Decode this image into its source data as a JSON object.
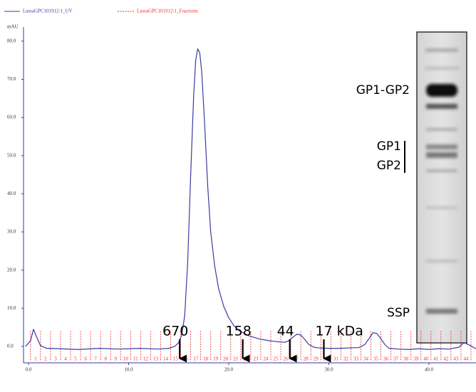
{
  "chart_data": {
    "type": "line",
    "y_label": "mAU",
    "xlim": [
      -0.5,
      44.7
    ],
    "ylim": [
      -4.3,
      83.7
    ],
    "xticks": [
      {
        "value": 0,
        "label": "0.0"
      },
      {
        "value": 10,
        "label": "10.0"
      },
      {
        "value": 20,
        "label": "20.0"
      },
      {
        "value": 30,
        "label": "30.0"
      },
      {
        "value": 40,
        "label": "40.0"
      }
    ],
    "yticks": [
      {
        "value": 0,
        "label": "0.0"
      },
      {
        "value": 10,
        "label": "10.0"
      },
      {
        "value": 20,
        "label": "20.0"
      },
      {
        "value": 30,
        "label": "30.0"
      },
      {
        "value": 40,
        "label": "40.0"
      },
      {
        "value": 50,
        "label": "50.0"
      },
      {
        "value": 60,
        "label": "60.0"
      },
      {
        "value": 70,
        "label": "70.0"
      },
      {
        "value": 80,
        "label": "80.0"
      }
    ],
    "series": [
      {
        "name": "LassaGPC101912:1_UV",
        "color": "#3b3ba0",
        "x": [
          -0.3,
          0.2,
          0.5,
          0.8,
          1.2,
          1.8,
          3,
          5,
          7,
          9,
          11,
          13,
          14,
          14.6,
          15,
          15.3,
          15.6,
          15.9,
          16.2,
          16.5,
          16.7,
          16.9,
          17.1,
          17.3,
          17.6,
          17.9,
          18.2,
          18.6,
          19,
          19.5,
          20,
          20.5,
          21,
          22,
          23,
          24,
          25,
          25.6,
          26,
          26.4,
          26.8,
          27.2,
          27.6,
          28,
          28.5,
          29,
          30,
          31,
          32,
          33,
          33.6,
          34,
          34.4,
          34.8,
          35.2,
          35.6,
          36,
          37,
          38,
          39,
          40,
          41,
          42,
          43,
          43.5,
          44,
          44.7
        ],
        "values": [
          0,
          1.5,
          4.5,
          2.5,
          0.2,
          -0.5,
          -0.6,
          -0.8,
          -0.5,
          -0.7,
          -0.5,
          -0.7,
          -0.5,
          0,
          1,
          3,
          8,
          22,
          45,
          66,
          75,
          78,
          77,
          72,
          58,
          42,
          30,
          21,
          15,
          10.5,
          7.5,
          5.5,
          4.2,
          2.8,
          2,
          1.5,
          1.2,
          1.1,
          1.5,
          2.4,
          3.2,
          3,
          1.8,
          0.5,
          -0.2,
          -0.4,
          -0.5,
          -0.5,
          -0.4,
          -0.3,
          0.5,
          2,
          3.6,
          3.4,
          2,
          0.5,
          -0.5,
          -0.7,
          -0.8,
          -0.6,
          -0.8,
          -0.6,
          -0.7,
          -0.2,
          1,
          0.4,
          -0.6
        ]
      },
      {
        "name": "LassaGPC101912:1_Fractions",
        "color": "#e03030"
      }
    ],
    "fractions": {
      "labels": [
        "1",
        "2",
        "3",
        "4",
        "5",
        "6",
        "7",
        "8",
        "9",
        "10",
        "11",
        "12",
        "13",
        "14",
        "15",
        "16",
        "17",
        "18",
        "19",
        "20",
        "21",
        "22",
        "23",
        "24",
        "25",
        "26",
        "27",
        "28",
        "29",
        "30",
        "31",
        "32",
        "33",
        "34",
        "35",
        "36",
        "37",
        "38",
        "39",
        "40",
        "41",
        "42",
        "43",
        "44"
      ],
      "bounds": [
        0.2,
        1.2,
        2.2,
        3.2,
        4.2,
        5.2,
        6.2,
        7.2,
        8.2,
        9.2,
        10.2,
        11.2,
        12.2,
        13.2,
        14.2,
        15.2,
        16.2,
        17.2,
        18.2,
        19.2,
        20.2,
        21.2,
        22.2,
        23.2,
        24.2,
        25.2,
        26.2,
        27.2,
        28.2,
        29.2,
        30.2,
        31.2,
        32.2,
        33.2,
        34.2,
        35.2,
        36.2,
        37.2,
        38.2,
        39.2,
        40.2,
        41.2,
        42.2,
        43.2,
        44.2
      ]
    },
    "markers": [
      {
        "label": "670",
        "x": 15.1
      },
      {
        "label": "158",
        "x": 21.4
      },
      {
        "label": "44",
        "x": 26.1
      },
      {
        "label": "17 kDa",
        "x": 29.5
      }
    ],
    "gel": {
      "labels": [
        "GP1-GP2",
        "GP1",
        "GP2",
        "SSP"
      ]
    }
  }
}
